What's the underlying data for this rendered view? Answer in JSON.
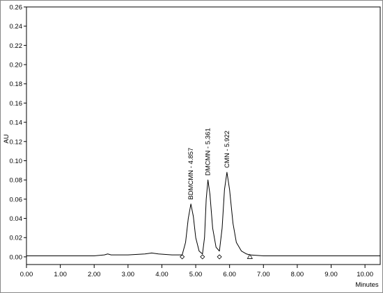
{
  "chart_data": {
    "type": "line",
    "y_label": "AU",
    "x_label": "Minutes",
    "xlim": [
      0,
      10.45
    ],
    "ylim": [
      -0.008,
      0.26
    ],
    "xticks": [
      {
        "value": 0,
        "label": "0.00"
      },
      {
        "value": 1,
        "label": "1.00"
      },
      {
        "value": 2,
        "label": "2.00"
      },
      {
        "value": 3,
        "label": "3.00"
      },
      {
        "value": 4,
        "label": "4.00"
      },
      {
        "value": 5,
        "label": "5.00"
      },
      {
        "value": 6,
        "label": "6.00"
      },
      {
        "value": 7,
        "label": "7.00"
      },
      {
        "value": 8,
        "label": "8.00"
      },
      {
        "value": 9,
        "label": "9.00"
      },
      {
        "value": 10,
        "label": "10.00"
      }
    ],
    "yticks": [
      {
        "value": 0,
        "label": "0.00"
      },
      {
        "value": 0.02,
        "label": "0.02"
      },
      {
        "value": 0.04,
        "label": "0.04"
      },
      {
        "value": 0.06,
        "label": "0.06"
      },
      {
        "value": 0.08,
        "label": "0.08"
      },
      {
        "value": 0.1,
        "label": "0.10"
      },
      {
        "value": 0.12,
        "label": "0.12"
      },
      {
        "value": 0.14,
        "label": "0.14"
      },
      {
        "value": 0.16,
        "label": "0.16"
      },
      {
        "value": 0.18,
        "label": "0.18"
      },
      {
        "value": 0.2,
        "label": "0.20"
      },
      {
        "value": 0.22,
        "label": "0.22"
      },
      {
        "value": 0.24,
        "label": "0.24"
      },
      {
        "value": 0.26,
        "label": "0.26"
      }
    ],
    "grid": false,
    "series": [
      {
        "color": "#000000",
        "x": [
          0,
          1,
          2,
          2.3,
          2.4,
          2.5,
          3.0,
          3.5,
          3.7,
          3.9,
          4.3,
          4.6,
          4.7,
          4.78,
          4.857,
          4.93,
          5.0,
          5.1,
          5.2,
          5.26,
          5.31,
          5.361,
          5.42,
          5.5,
          5.6,
          5.7,
          5.78,
          5.85,
          5.922,
          6.0,
          6.1,
          6.2,
          6.35,
          6.5,
          6.6,
          7,
          8,
          9,
          10,
          10.45
        ],
        "values": [
          0.001,
          0.001,
          0.001,
          0.002,
          0.003,
          0.002,
          0.002,
          0.003,
          0.004,
          0.003,
          0.002,
          0.002,
          0.015,
          0.04,
          0.055,
          0.042,
          0.02,
          0.006,
          0.003,
          0.02,
          0.06,
          0.08,
          0.065,
          0.03,
          0.01,
          0.006,
          0.03,
          0.07,
          0.088,
          0.07,
          0.035,
          0.015,
          0.006,
          0.003,
          0.002,
          0.001,
          0.001,
          0.001,
          0.001,
          0.001
        ]
      }
    ],
    "annotations": [
      {
        "text": "BDMCMN - 4.857",
        "x": 4.857,
        "y": 0.058
      },
      {
        "text": "DMCMN - 5.361",
        "x": 5.361,
        "y": 0.083
      },
      {
        "text": "CMN - 5.922",
        "x": 5.922,
        "y": 0.091
      }
    ],
    "markers": [
      {
        "x": 4.6,
        "y": 0,
        "shape": "diamond"
      },
      {
        "x": 5.2,
        "y": 0,
        "shape": "diamond"
      },
      {
        "x": 5.7,
        "y": 0,
        "shape": "diamond"
      },
      {
        "x": 6.6,
        "y": 0,
        "shape": "triangle"
      }
    ]
  }
}
